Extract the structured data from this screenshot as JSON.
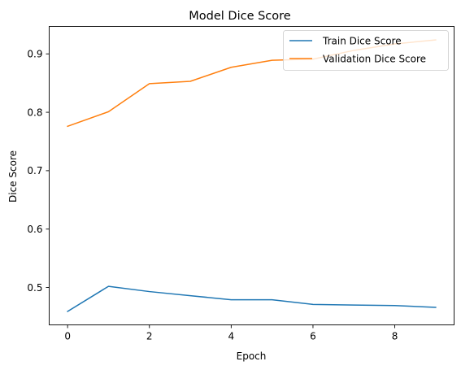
{
  "chart_data": {
    "type": "line",
    "title": "Model Dice Score",
    "xlabel": "Epoch",
    "ylabel": "Dice Score",
    "x": [
      0,
      1,
      2,
      3,
      4,
      5,
      6,
      7,
      8,
      9
    ],
    "xlim": [
      -0.45,
      9.45
    ],
    "ylim": [
      0.436,
      0.947
    ],
    "xticks": [
      0,
      2,
      4,
      6,
      8
    ],
    "yticks": [
      0.5,
      0.6,
      0.7,
      0.8,
      0.9
    ],
    "xtick_labels": [
      "0",
      "2",
      "4",
      "6",
      "8"
    ],
    "ytick_labels": [
      "0.5",
      "0.6",
      "0.7",
      "0.8",
      "0.9"
    ],
    "grid": false,
    "legend_position": "top-right",
    "series": [
      {
        "name": "Train Dice Score",
        "color": "#1f77b4",
        "values": [
          0.459,
          0.502,
          0.493,
          0.486,
          0.479,
          0.479,
          0.471,
          0.47,
          0.469,
          0.466
        ]
      },
      {
        "name": "Validation Dice Score",
        "color": "#ff7f0e",
        "values": [
          0.776,
          0.801,
          0.849,
          0.853,
          0.877,
          0.889,
          0.891,
          0.906,
          0.917,
          0.924
        ]
      }
    ]
  }
}
